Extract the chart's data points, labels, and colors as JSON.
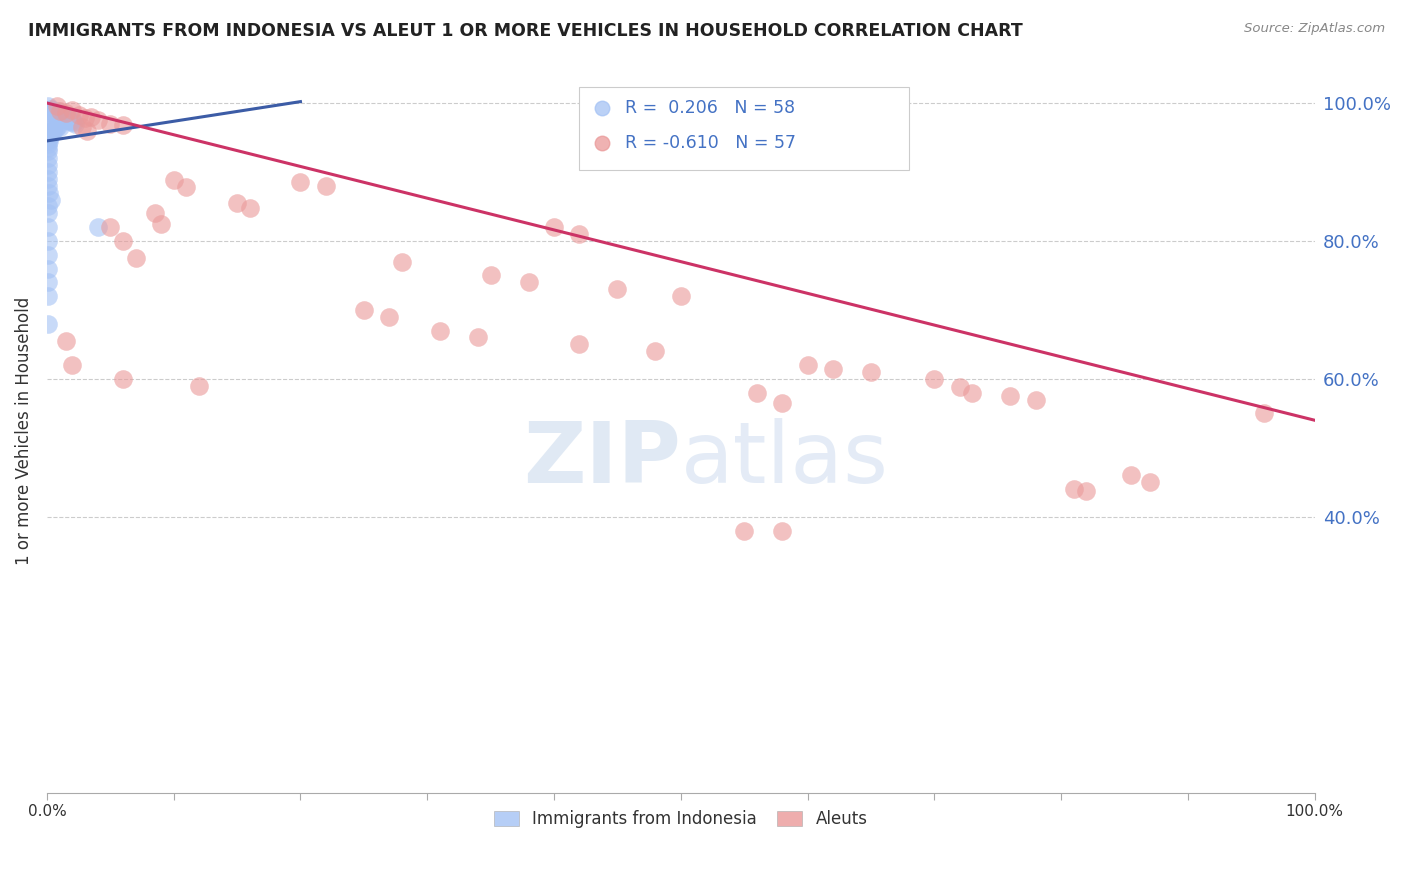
{
  "title": "IMMIGRANTS FROM INDONESIA VS ALEUT 1 OR MORE VEHICLES IN HOUSEHOLD CORRELATION CHART",
  "source": "Source: ZipAtlas.com",
  "ylabel": "1 or more Vehicles in Household",
  "right_yticks_vals": [
    1.0,
    0.8,
    0.6,
    0.4
  ],
  "right_ytick_labels": [
    "100.0%",
    "80.0%",
    "60.0%",
    "40.0%"
  ],
  "bottom_legend": [
    "Immigrants from Indonesia",
    "Aleuts"
  ],
  "watermark": "ZIPatlas",
  "blue_R": "0.206",
  "blue_N": "58",
  "pink_R": "-0.610",
  "pink_N": "57",
  "blue_color": "#a4c2f4",
  "pink_color": "#ea9999",
  "blue_line_color": "#3c5ca6",
  "pink_line_color": "#cc3366",
  "blue_scatter": [
    [
      0.001,
      0.995
    ],
    [
      0.002,
      0.99
    ],
    [
      0.003,
      0.992
    ],
    [
      0.004,
      0.988
    ],
    [
      0.005,
      0.985
    ],
    [
      0.006,
      0.983
    ],
    [
      0.007,
      0.987
    ],
    [
      0.008,
      0.984
    ],
    [
      0.009,
      0.989
    ],
    [
      0.01,
      0.982
    ],
    [
      0.011,
      0.98
    ],
    [
      0.012,
      0.978
    ],
    [
      0.013,
      0.983
    ],
    [
      0.014,
      0.981
    ],
    [
      0.015,
      0.979
    ],
    [
      0.016,
      0.976
    ],
    [
      0.017,
      0.978
    ],
    [
      0.018,
      0.974
    ],
    [
      0.019,
      0.972
    ],
    [
      0.02,
      0.975
    ],
    [
      0.021,
      0.973
    ],
    [
      0.022,
      0.97
    ],
    [
      0.005,
      0.968
    ],
    [
      0.006,
      0.966
    ],
    [
      0.007,
      0.964
    ],
    [
      0.008,
      0.969
    ],
    [
      0.009,
      0.967
    ],
    [
      0.01,
      0.965
    ],
    [
      0.003,
      0.962
    ],
    [
      0.004,
      0.96
    ],
    [
      0.005,
      0.958
    ],
    [
      0.002,
      0.956
    ],
    [
      0.003,
      0.954
    ],
    [
      0.004,
      0.959
    ],
    [
      0.001,
      0.952
    ],
    [
      0.002,
      0.95
    ],
    [
      0.001,
      0.947
    ],
    [
      0.002,
      0.945
    ],
    [
      0.001,
      0.94
    ],
    [
      0.001,
      0.935
    ],
    [
      0.001,
      0.93
    ],
    [
      0.001,
      0.92
    ],
    [
      0.001,
      0.91
    ],
    [
      0.001,
      0.9
    ],
    [
      0.001,
      0.89
    ],
    [
      0.001,
      0.88
    ],
    [
      0.002,
      0.87
    ],
    [
      0.003,
      0.86
    ],
    [
      0.001,
      0.85
    ],
    [
      0.001,
      0.84
    ],
    [
      0.001,
      0.82
    ],
    [
      0.001,
      0.8
    ],
    [
      0.001,
      0.78
    ],
    [
      0.04,
      0.82
    ],
    [
      0.001,
      0.76
    ],
    [
      0.001,
      0.74
    ],
    [
      0.001,
      0.72
    ],
    [
      0.001,
      0.68
    ]
  ],
  "pink_scatter": [
    [
      0.008,
      0.995
    ],
    [
      0.01,
      0.988
    ],
    [
      0.015,
      0.985
    ],
    [
      0.02,
      0.99
    ],
    [
      0.025,
      0.982
    ],
    [
      0.03,
      0.978
    ],
    [
      0.035,
      0.98
    ],
    [
      0.04,
      0.975
    ],
    [
      0.05,
      0.97
    ],
    [
      0.06,
      0.968
    ],
    [
      0.028,
      0.965
    ],
    [
      0.032,
      0.96
    ],
    [
      0.1,
      0.888
    ],
    [
      0.11,
      0.878
    ],
    [
      0.15,
      0.855
    ],
    [
      0.16,
      0.848
    ],
    [
      0.2,
      0.885
    ],
    [
      0.22,
      0.88
    ],
    [
      0.085,
      0.84
    ],
    [
      0.09,
      0.825
    ],
    [
      0.05,
      0.82
    ],
    [
      0.06,
      0.8
    ],
    [
      0.07,
      0.775
    ],
    [
      0.28,
      0.77
    ],
    [
      0.4,
      0.82
    ],
    [
      0.42,
      0.81
    ],
    [
      0.35,
      0.75
    ],
    [
      0.38,
      0.74
    ],
    [
      0.45,
      0.73
    ],
    [
      0.5,
      0.72
    ],
    [
      0.25,
      0.7
    ],
    [
      0.27,
      0.69
    ],
    [
      0.31,
      0.67
    ],
    [
      0.34,
      0.66
    ],
    [
      0.42,
      0.65
    ],
    [
      0.48,
      0.64
    ],
    [
      0.015,
      0.655
    ],
    [
      0.02,
      0.62
    ],
    [
      0.06,
      0.6
    ],
    [
      0.12,
      0.59
    ],
    [
      0.6,
      0.62
    ],
    [
      0.62,
      0.615
    ],
    [
      0.65,
      0.61
    ],
    [
      0.7,
      0.6
    ],
    [
      0.72,
      0.588
    ],
    [
      0.73,
      0.58
    ],
    [
      0.76,
      0.575
    ],
    [
      0.78,
      0.57
    ],
    [
      0.56,
      0.58
    ],
    [
      0.58,
      0.565
    ],
    [
      0.81,
      0.44
    ],
    [
      0.82,
      0.438
    ],
    [
      0.855,
      0.46
    ],
    [
      0.87,
      0.45
    ],
    [
      0.55,
      0.38
    ],
    [
      0.58,
      0.38
    ],
    [
      0.96,
      0.55
    ]
  ],
  "blue_line": [
    [
      0.0,
      0.945
    ],
    [
      0.2,
      1.002
    ]
  ],
  "pink_line": [
    [
      0.0,
      1.0
    ],
    [
      1.0,
      0.54
    ]
  ],
  "xlim": [
    0,
    1.0
  ],
  "ylim": [
    0,
    1.05
  ],
  "xticks": [
    0.0,
    0.1,
    0.2,
    0.3,
    0.4,
    0.5,
    0.6,
    0.7,
    0.8,
    0.9,
    1.0
  ],
  "xtick_labels_show": [
    "0.0%",
    "",
    "",
    "",
    "",
    "",
    "",
    "",
    "",
    "",
    "100.0%"
  ]
}
